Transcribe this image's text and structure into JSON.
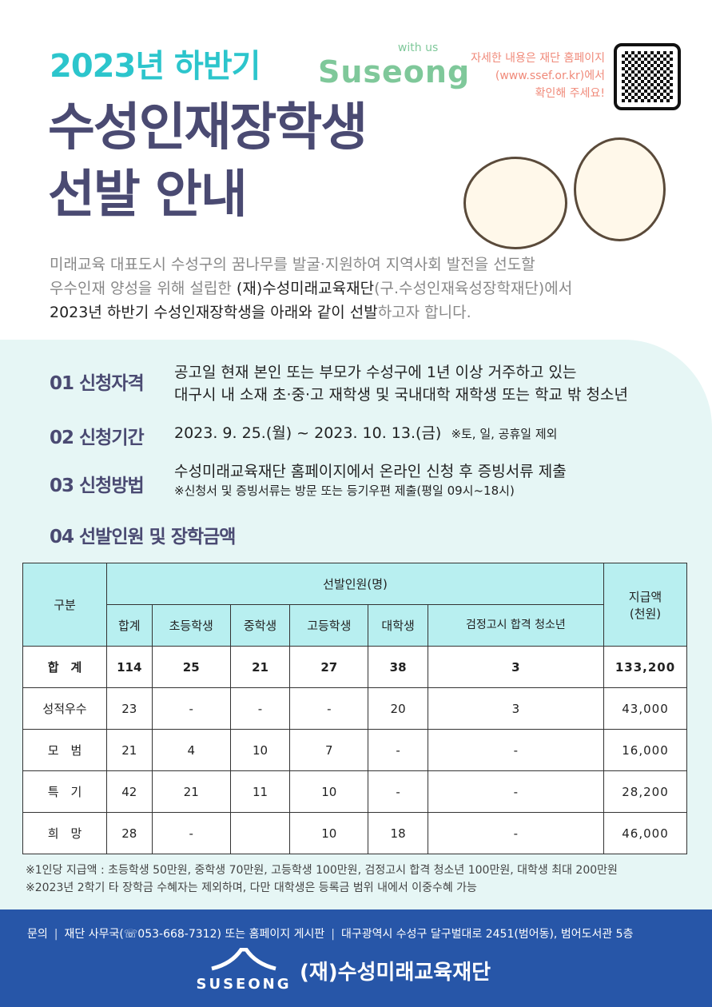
{
  "header": {
    "subtitle": "2023년 하반기",
    "brand_small": "with us",
    "brand": "Suseong",
    "title_line1": "수성인재장학생",
    "title_line2": "선발 안내",
    "notice": [
      "자세한 내용은 재단 홈페이지",
      "(www.ssef.or.kr)에서",
      "확인해 주세요!"
    ]
  },
  "intro": {
    "line1": "미래교육 대표도시 수성구의 꿈나무를 발굴·지원하여 지역사회 발전을 선도할",
    "line2_a": "우수인재 양성을 위해 설립한 ",
    "line2_b": "(재)수성미래교육재단",
    "line2_c": "(구.수성인재육성장학재단)에서",
    "line3_a": "2023년 하반기 수성인재장학생을 아래와 같이 선발",
    "line3_b": "하고자 합니다."
  },
  "sections": [
    {
      "title": "01 신청자격",
      "lines": [
        "공고일 현재 본인 또는 부모가 수성구에 1년 이상 거주하고 있는",
        "대구시 내 소재 초·중·고 재학생 및 국내대학 재학생 또는 학교 밖 청소년"
      ]
    },
    {
      "title": "02 신청기간",
      "lines": [
        "2023. 9. 25.(월) ~ 2023. 10. 13.(금)"
      ],
      "note": "※토, 일, 공휴일 제외"
    },
    {
      "title": "03 신청방법",
      "lines": [
        "수성미래교육재단 홈페이지에서 온라인 신청 후 증빙서류 제출"
      ],
      "note": "※신청서 및 증빙서류는 방문 또는 등기우편 제출(평일 09시~18시)"
    },
    {
      "title": "04 선발인원 및 장학금액"
    }
  ],
  "table": {
    "col_category": "구분",
    "group": "선발인원(명)",
    "amount_l1": "지급액",
    "amount_l2": "(천원)",
    "columns": [
      "합계",
      "초등학생",
      "중학생",
      "고등학생",
      "대학생",
      "검정고시 합격 청소년"
    ],
    "rows": [
      {
        "label": "합　계",
        "cells": [
          "114",
          "25",
          "21",
          "27",
          "38",
          "3",
          "133,200"
        ]
      },
      {
        "label": "성적우수",
        "cells": [
          "23",
          "-",
          "-",
          "-",
          "20",
          "3",
          "43,000"
        ]
      },
      {
        "label": "모　범",
        "cells": [
          "21",
          "4",
          "10",
          "7",
          "-",
          "-",
          "16,000"
        ]
      },
      {
        "label": "특　기",
        "cells": [
          "42",
          "21",
          "11",
          "10",
          "-",
          "-",
          "28,200"
        ]
      },
      {
        "label": "희　망",
        "cells": [
          "28",
          "-",
          "",
          "10",
          "18",
          "-",
          "46,000"
        ]
      }
    ]
  },
  "notes": [
    "※1인당 지급액 : 초등학생 50만원, 중학생 70만원, 고등학생 100만원, 검정고시 합격 청소년 100만원, 대학생 최대 200만원",
    "※2023년 2학기 타 장학금 수혜자는 제외하며, 다만 대학생은 등록금 범위 내에서 이중수혜 가능"
  ],
  "footer": {
    "contact_label": "문의",
    "contact1": "재단 사무국(☏053-668-7312) 또는 홈페이지 게시판",
    "contact2": "대구광역시 수성구 달구벌대로 2451(범어동), 범어도서관 5층",
    "logo_text": "SUSEONG",
    "org": "(재)수성미래교육재단"
  },
  "colors": {
    "accent": "#2cc5cc",
    "title": "#4a4a72",
    "footer": "#2756a8",
    "table_header": "#b8eff0",
    "background": "#e6f6f5"
  }
}
